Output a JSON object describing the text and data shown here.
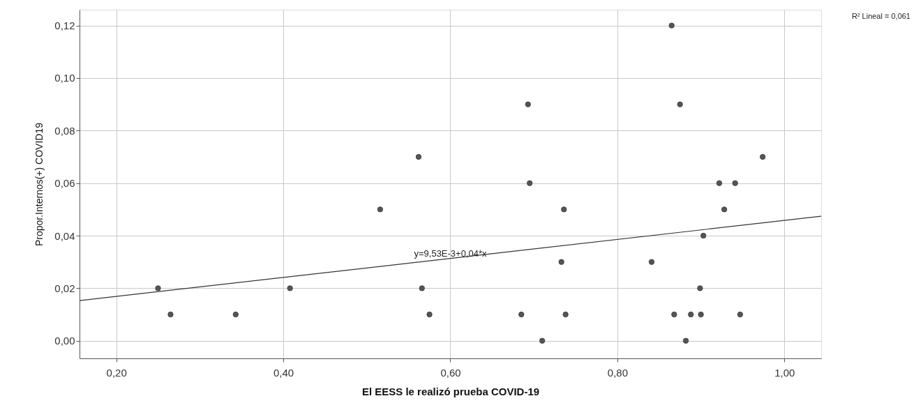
{
  "chart_data": {
    "type": "scatter",
    "xlabel": "El EESS le realizó prueba COVID-19",
    "ylabel": "Propor.Internos(+) COVID19",
    "xlim": [
      0.156,
      1.044
    ],
    "ylim": [
      -0.0067,
      0.126
    ],
    "xticks": [
      {
        "value": 0.2,
        "label": "0,20"
      },
      {
        "value": 0.4,
        "label": "0,40"
      },
      {
        "value": 0.6,
        "label": "0,60"
      },
      {
        "value": 0.8,
        "label": "0,80"
      },
      {
        "value": 1.0,
        "label": "1,00"
      }
    ],
    "yticks": [
      {
        "value": 0.0,
        "label": "0,00"
      },
      {
        "value": 0.02,
        "label": "0,02"
      },
      {
        "value": 0.04,
        "label": "0,04"
      },
      {
        "value": 0.06,
        "label": "0,06"
      },
      {
        "value": 0.08,
        "label": "0,08"
      },
      {
        "value": 0.1,
        "label": "0,10"
      },
      {
        "value": 0.12,
        "label": "0,12"
      }
    ],
    "grid": true,
    "series": [
      {
        "marker": "circle",
        "color": "#555555",
        "x": [
          0.25,
          0.265,
          0.343,
          0.408,
          0.516,
          0.562,
          0.566,
          0.575,
          0.685,
          0.693,
          0.695,
          0.71,
          0.733,
          0.736,
          0.738,
          0.865,
          0.875,
          0.841,
          0.868,
          0.882,
          0.888,
          0.899,
          0.9,
          0.903,
          0.922,
          0.928,
          0.941,
          0.947,
          0.974
        ],
        "values": [
          0.02,
          0.01,
          0.01,
          0.02,
          0.05,
          0.07,
          0.02,
          0.01,
          0.01,
          0.09,
          0.06,
          0.0,
          0.03,
          0.05,
          0.01,
          0.12,
          0.09,
          0.03,
          0.01,
          0.0,
          0.01,
          0.02,
          0.01,
          0.04,
          0.06,
          0.05,
          0.06,
          0.01,
          0.07
        ]
      },
      {
        "type": "line",
        "color": "#333333",
        "x": [
          0.156,
          1.044
        ],
        "values": [
          0.0153,
          0.0474
        ]
      }
    ],
    "annotations": [
      "y=9,53E-3+0,04*x",
      "R² Lineal = 0,061"
    ]
  }
}
